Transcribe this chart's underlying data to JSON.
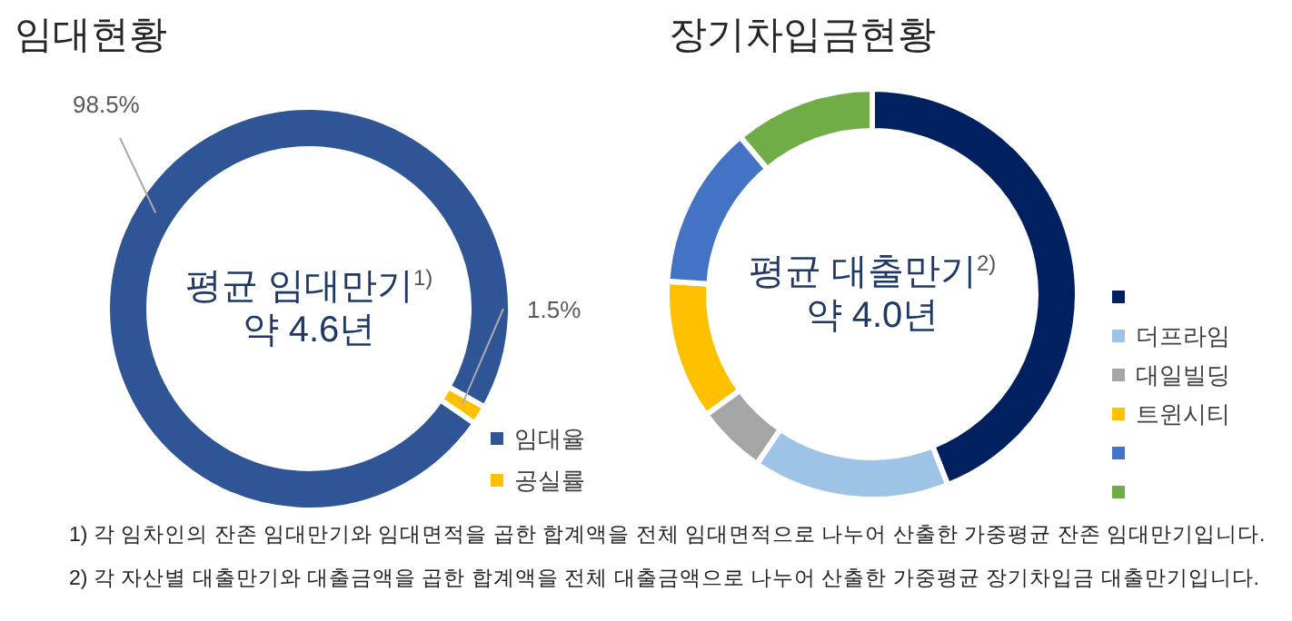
{
  "chart_data": [
    {
      "type": "donut",
      "title": "임대현황",
      "categories": [
        "임대율",
        "공실률"
      ],
      "values": [
        98.5,
        1.5
      ],
      "colors": [
        "#2f5597",
        "#ffc000"
      ],
      "value_labels": [
        "98.5%",
        "1.5%"
      ],
      "legend": "bottom right",
      "annotations": [
        "평균 임대만기$^{1)}$",
        "약 4.6년"
      ]
    },
    {
      "type": "donut",
      "title": "장기차입금현황",
      "categories": [
        null,
        "더프라임",
        "대일빌딩",
        "트윈시티",
        null,
        null
      ],
      "values": [
        44,
        15.5,
        5.5,
        11,
        12.9,
        11.1
      ],
      "colors": [
        "#002060",
        "#9dc3e6",
        "#a5a5a5",
        "#ffc000",
        "#4472c4",
        "#70ad47"
      ],
      "legend": "right",
      "annotations": [
        "평균 대출만기$^{2)}$",
        "약 4.0년",
        "1) 각 임차인의 잔존 임대만기와 임대면적을 곱한 합계액을 전체 임대면적으로 나누어 산출한 가중평균 잔존 임대만기입니다.",
        "2) 각 자산별 대출만기와 대출금액을 곱한 합계액을 전체 대출금액으로 나누어 산출한 가중평균 장기차입금 대출만기입니다."
      ]
    }
  ]
}
